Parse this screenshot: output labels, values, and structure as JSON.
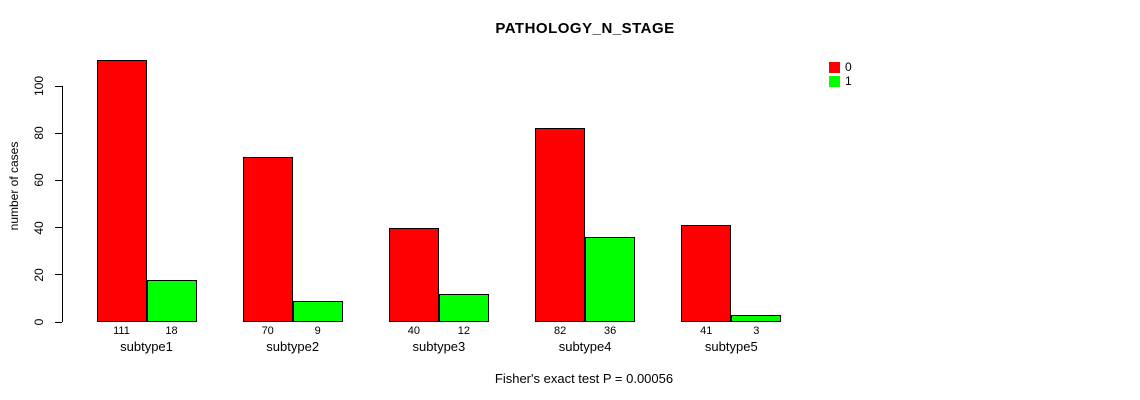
{
  "title": "PATHOLOGY_N_STAGE",
  "ylabel": "number of cases",
  "footer": "Fisher's exact test P = 0.00056",
  "legend": [
    {
      "label": "0",
      "color": "#FF0000"
    },
    {
      "label": "1",
      "color": "#00FF00"
    }
  ],
  "chart_data": {
    "type": "bar",
    "title": "PATHOLOGY_N_STAGE",
    "categories": [
      "subtype1",
      "subtype2",
      "subtype3",
      "subtype4",
      "subtype5"
    ],
    "series": [
      {
        "name": "0",
        "color": "#FF0000",
        "values": [
          111,
          70,
          40,
          82,
          41
        ]
      },
      {
        "name": "1",
        "color": "#00FF00",
        "values": [
          18,
          9,
          12,
          36,
          3
        ]
      }
    ],
    "ylabel": "number of cases",
    "xlabel": "",
    "yticks": [
      0,
      20,
      40,
      60,
      80,
      100
    ],
    "ylim": [
      0,
      111
    ],
    "grid": false,
    "legend_position": "top-right",
    "bar_value_labels_shown": true,
    "annotation": "Fisher's exact test P = 0.00056"
  }
}
